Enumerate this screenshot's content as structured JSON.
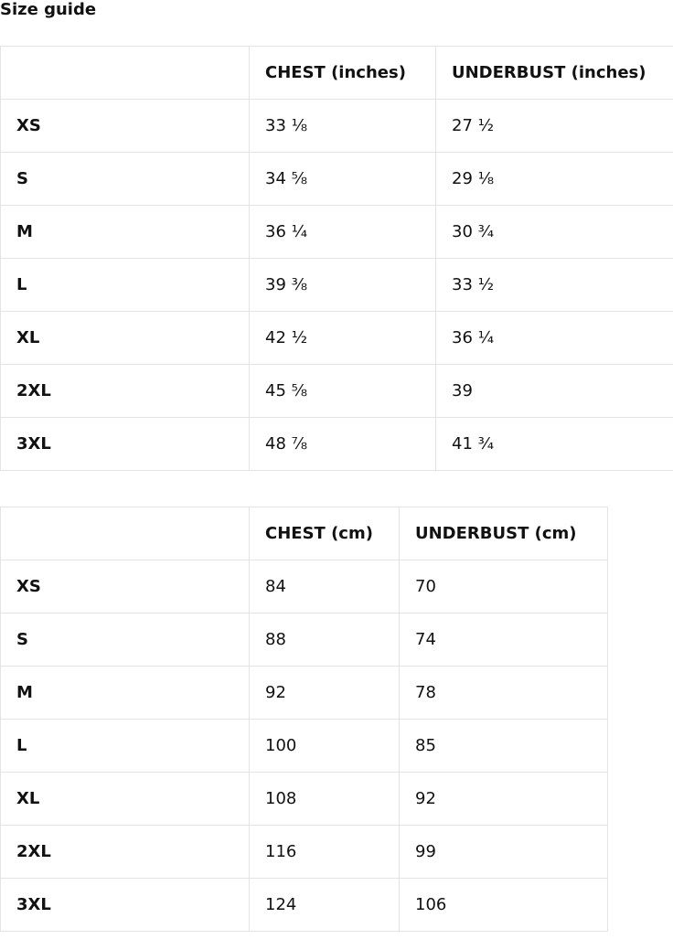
{
  "title": "Size guide",
  "tables": [
    {
      "headers": [
        "",
        "CHEST (inches)",
        "UNDERBUST (inches)"
      ],
      "rows": [
        [
          "XS",
          "33 ⅛",
          "27 ½"
        ],
        [
          "S",
          "34 ⅝",
          "29 ⅛"
        ],
        [
          "M",
          "36 ¼",
          "30 ¾"
        ],
        [
          "L",
          "39 ⅜",
          "33 ½"
        ],
        [
          "XL",
          "42 ½",
          "36 ¼"
        ],
        [
          "2XL",
          "45 ⅝",
          "39"
        ],
        [
          "3XL",
          "48 ⅞",
          "41 ¾"
        ]
      ]
    },
    {
      "headers": [
        "",
        "CHEST (cm)",
        "UNDERBUST (cm)"
      ],
      "rows": [
        [
          "XS",
          "84",
          "70"
        ],
        [
          "S",
          "88",
          "74"
        ],
        [
          "M",
          "92",
          "78"
        ],
        [
          "L",
          "100",
          "85"
        ],
        [
          "XL",
          "108",
          "92"
        ],
        [
          "2XL",
          "116",
          "99"
        ],
        [
          "3XL",
          "124",
          "106"
        ]
      ]
    }
  ]
}
